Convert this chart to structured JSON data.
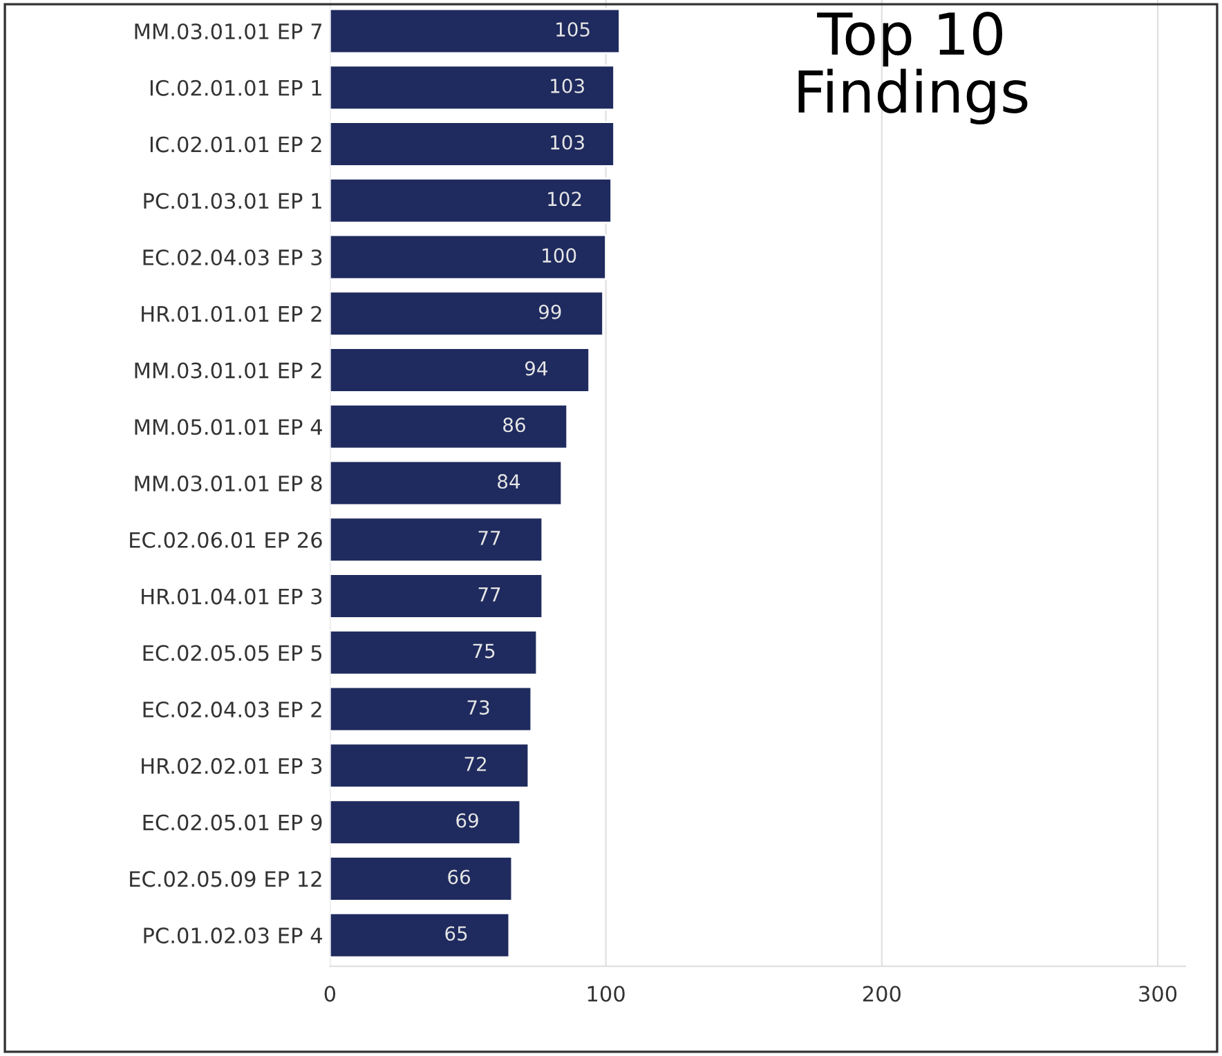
{
  "chart_data": {
    "type": "bar",
    "orientation": "horizontal",
    "title": "Top 10\nFindings",
    "categories": [
      "MM.03.01.01 EP 7",
      "IC.02.01.01 EP 1",
      "IC.02.01.01 EP 2",
      "PC.01.03.01 EP 1",
      "EC.02.04.03 EP 3",
      "HR.01.01.01 EP 2",
      "MM.03.01.01 EP 2",
      "MM.05.01.01 EP 4",
      "MM.03.01.01 EP 8",
      "EC.02.06.01 EP 26",
      "HR.01.04.01 EP 3",
      "EC.02.05.05 EP 5",
      "EC.02.04.03 EP 2",
      "HR.02.02.01 EP 3",
      "EC.02.05.01 EP 9",
      "EC.02.05.09 EP 12",
      "PC.01.02.03 EP 4"
    ],
    "values": [
      105,
      103,
      103,
      102,
      100,
      99,
      94,
      86,
      84,
      77,
      77,
      75,
      73,
      72,
      69,
      66,
      65
    ],
    "color": "#1f2b5e",
    "xlim": [
      0,
      310
    ],
    "xticks": [
      0,
      100,
      200,
      300
    ],
    "grid": "x",
    "data_labels": true
  }
}
